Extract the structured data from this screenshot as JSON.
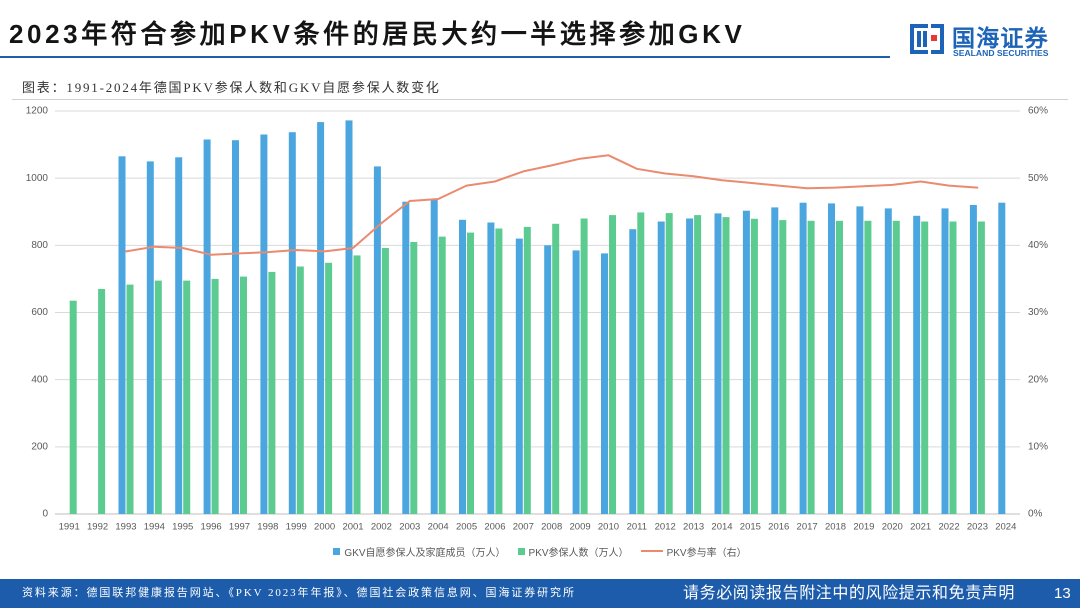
{
  "slide": {
    "title": "2023年符合参加PKV条件的居民大约一半选择参加GKV",
    "source": "资料来源：德国联邦健康报告网站、《PKV 2023年年报》、德国社会政策信息网、国海证券研究所",
    "disclaimer": "请务必阅读报告附注中的风险提示和免责声明",
    "page_number": "13"
  },
  "logo": {
    "name_cn": "国海证券",
    "name_en": "SEALAND SECURITIES",
    "icon": "sealand-logo-icon"
  },
  "colors": {
    "brand_blue": "#1d64b8",
    "footer_blue": "#1d5cab",
    "title_rule": "#1e5fae"
  },
  "chart_data": {
    "type": "bar",
    "title": "图表：1991-2024年德国PKV参保人数和GKV自愿参保人数变化",
    "categories": [
      "1991",
      "1992",
      "1993",
      "1994",
      "1995",
      "1996",
      "1997",
      "1998",
      "1999",
      "2000",
      "2001",
      "2002",
      "2003",
      "2004",
      "2005",
      "2006",
      "2007",
      "2008",
      "2009",
      "2010",
      "2011",
      "2012",
      "2013",
      "2014",
      "2015",
      "2016",
      "2017",
      "2018",
      "2019",
      "2020",
      "2021",
      "2022",
      "2023",
      "2024"
    ],
    "series": [
      {
        "name": "GKV自愿参保人及家庭成员（万人）",
        "type": "bar",
        "axis": "left",
        "color": "#4ba6e0",
        "values": [
          null,
          null,
          1065,
          1050,
          1062,
          1115,
          1113,
          1130,
          1137,
          1167,
          1172,
          1035,
          930,
          935,
          876,
          868,
          820,
          800,
          785,
          776,
          848,
          871,
          880,
          895,
          903,
          913,
          927,
          925,
          916,
          910,
          888,
          910,
          920,
          927
        ]
      },
      {
        "name": "PKV参保人数（万人）",
        "type": "bar",
        "axis": "left",
        "color": "#5ccb8f",
        "values": [
          635,
          670,
          683,
          695,
          695,
          700,
          707,
          721,
          737,
          748,
          770,
          792,
          810,
          826,
          838,
          850,
          855,
          864,
          880,
          890,
          898,
          896,
          890,
          884,
          879,
          875,
          873,
          873,
          873,
          873,
          871,
          871,
          871,
          null
        ]
      },
      {
        "name": "PKV参与率（右）",
        "type": "line",
        "axis": "right",
        "color": "#ea8a6e",
        "values": [
          null,
          null,
          39.1,
          39.8,
          39.6,
          38.6,
          38.8,
          39.0,
          39.3,
          39.1,
          39.6,
          43.3,
          46.6,
          46.9,
          48.9,
          49.5,
          51.0,
          51.9,
          52.9,
          53.4,
          51.4,
          50.7,
          50.3,
          49.7,
          49.3,
          48.9,
          48.5,
          48.6,
          48.8,
          49.0,
          49.5,
          48.9,
          48.6,
          null
        ]
      }
    ],
    "y_axis": {
      "min": 0,
      "max": 1200,
      "ticks": [
        0,
        200,
        400,
        600,
        800,
        1000,
        1200
      ]
    },
    "y2_axis": {
      "min": 0,
      "max": 60,
      "ticks": [
        0,
        10,
        20,
        30,
        40,
        50,
        60
      ],
      "tick_labels": [
        "0%",
        "10%",
        "20%",
        "30%",
        "40%",
        "50%",
        "60%"
      ]
    },
    "grid": true,
    "legend": "bottom"
  }
}
